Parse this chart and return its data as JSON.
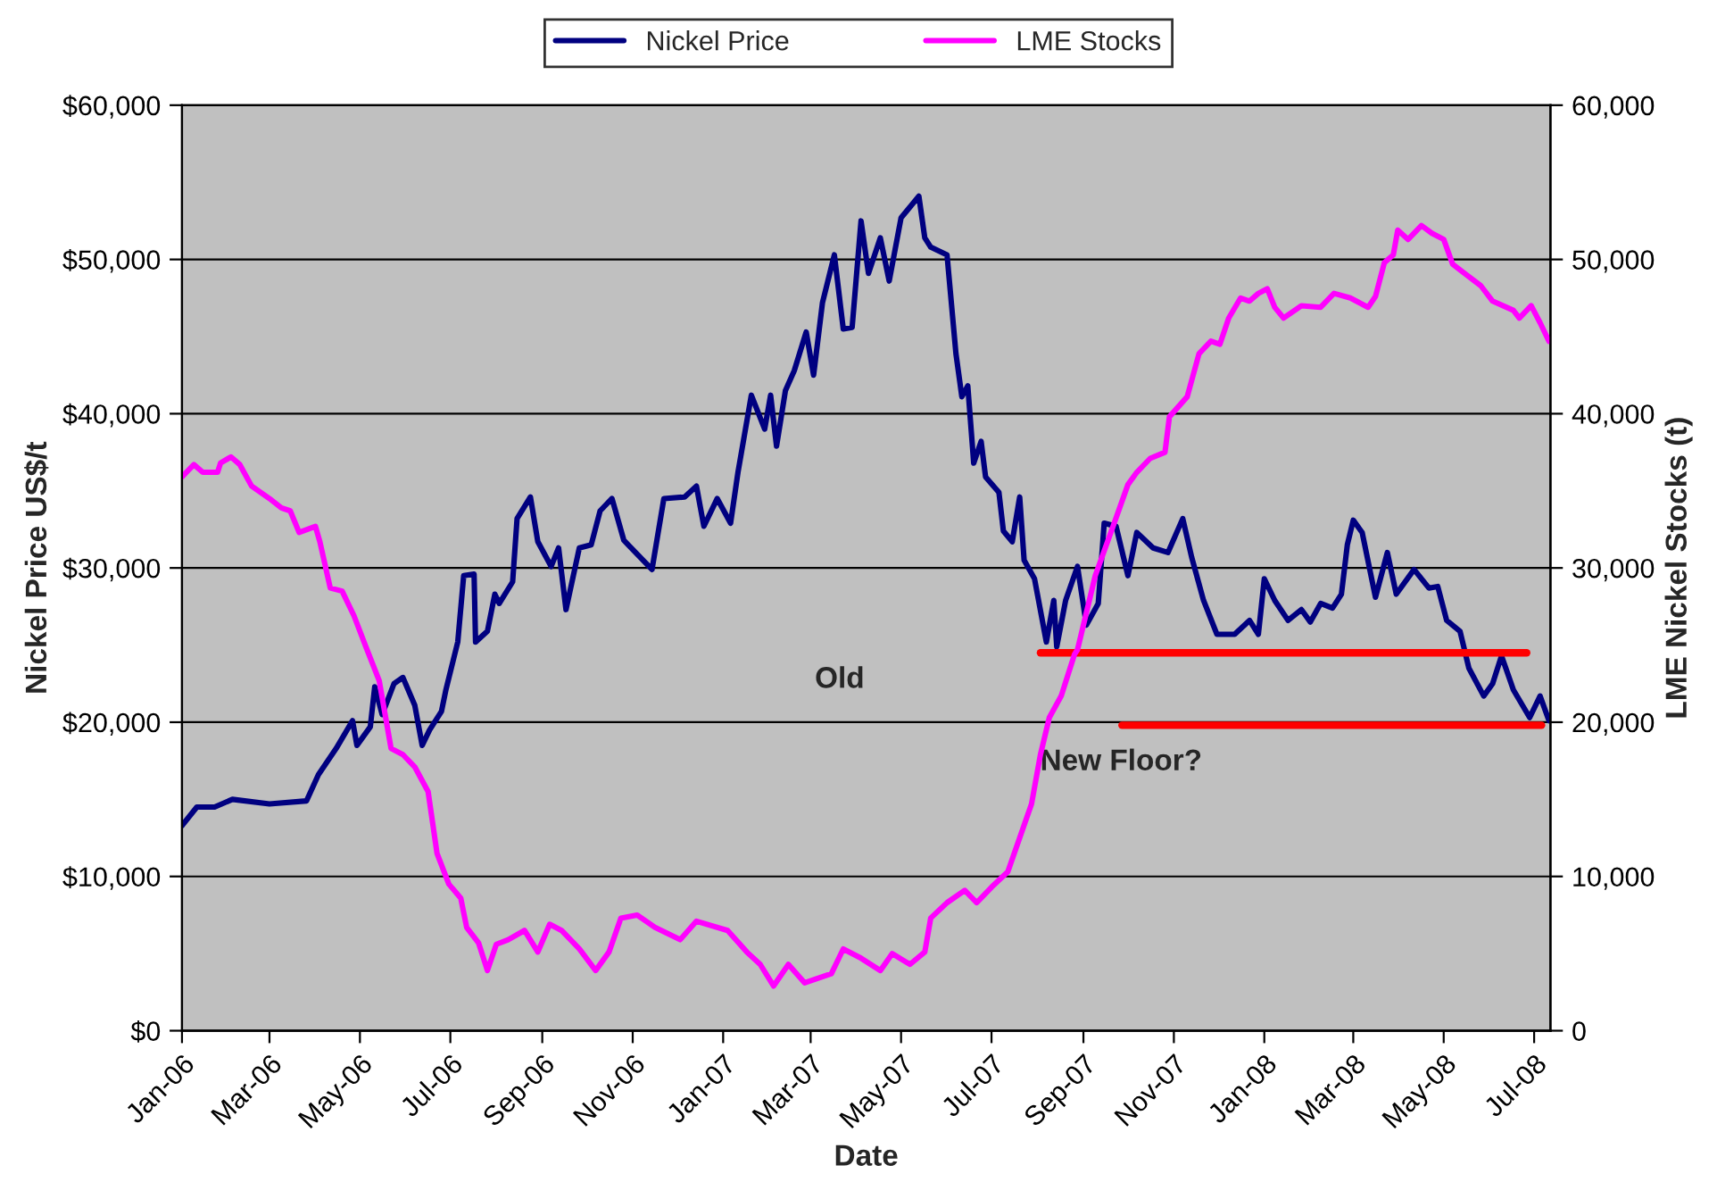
{
  "chart_data": {
    "type": "line",
    "xlabel": "Date",
    "ylabel": "Nickel Price US$/t",
    "y2label": "LME Nickel Stocks (t)",
    "xlim": [
      "2006-01-01",
      "2008-07-12"
    ],
    "xticks": [
      {
        "value": "2006-01-01",
        "label": "Jan-06"
      },
      {
        "value": "2006-03-01",
        "label": "Mar-06"
      },
      {
        "value": "2006-05-01",
        "label": "May-06"
      },
      {
        "value": "2006-07-01",
        "label": "Jul-06"
      },
      {
        "value": "2006-09-01",
        "label": "Sep-06"
      },
      {
        "value": "2006-11-01",
        "label": "Nov-06"
      },
      {
        "value": "2007-01-01",
        "label": "Jan-07"
      },
      {
        "value": "2007-03-01",
        "label": "Mar-07"
      },
      {
        "value": "2007-05-01",
        "label": "May-07"
      },
      {
        "value": "2007-07-01",
        "label": "Jul-07"
      },
      {
        "value": "2007-09-01",
        "label": "Sep-07"
      },
      {
        "value": "2007-11-01",
        "label": "Nov-07"
      },
      {
        "value": "2008-01-01",
        "label": "Jan-08"
      },
      {
        "value": "2008-03-01",
        "label": "Mar-08"
      },
      {
        "value": "2008-05-01",
        "label": "May-08"
      },
      {
        "value": "2008-07-01",
        "label": "Jul-08"
      }
    ],
    "ylim": [
      0,
      60000
    ],
    "yticks": [
      {
        "value": 0,
        "label": "$0"
      },
      {
        "value": 10000,
        "label": "$10,000"
      },
      {
        "value": 20000,
        "label": "$20,000"
      },
      {
        "value": 30000,
        "label": "$30,000"
      },
      {
        "value": 40000,
        "label": "$40,000"
      },
      {
        "value": 50000,
        "label": "$50,000"
      },
      {
        "value": 60000,
        "label": "$60,000"
      }
    ],
    "y2lim": [
      0,
      60000
    ],
    "y2ticks": [
      {
        "value": 0,
        "label": "0"
      },
      {
        "value": 10000,
        "label": "10,000"
      },
      {
        "value": 20000,
        "label": "20,000"
      },
      {
        "value": 30000,
        "label": "30,000"
      },
      {
        "value": 40000,
        "label": "40,000"
      },
      {
        "value": 50000,
        "label": "50,000"
      },
      {
        "value": 60000,
        "label": "60,000"
      }
    ],
    "grid": "y",
    "legend": "top",
    "marker": "none",
    "line_style": "solid",
    "series": [
      {
        "name": "Nickel Price",
        "color": "#000080",
        "axis": "y",
        "x": [
          "2006-01-01",
          "2006-01-11",
          "2006-01-23",
          "2006-02-04",
          "2006-03-01",
          "2006-03-26",
          "2006-04-03",
          "2006-04-15",
          "2006-04-26",
          "2006-04-29",
          "2006-05-08",
          "2006-05-11",
          "2006-05-16",
          "2006-05-24",
          "2006-05-30",
          "2006-06-07",
          "2006-06-12",
          "2006-06-17",
          "2006-06-25",
          "2006-06-28",
          "2006-07-06",
          "2006-07-10",
          "2006-07-17",
          "2006-07-18",
          "2006-07-26",
          "2006-07-31",
          "2006-08-03",
          "2006-08-12",
          "2006-08-15",
          "2006-08-24",
          "2006-08-29",
          "2006-09-07",
          "2006-09-12",
          "2006-09-17",
          "2006-09-26",
          "2006-10-04",
          "2006-10-10",
          "2006-10-18",
          "2006-10-26",
          "2006-10-29",
          "2006-11-14",
          "2006-11-22",
          "2006-12-06",
          "2006-12-14",
          "2006-12-19",
          "2006-12-28",
          "2007-01-06",
          "2007-01-11",
          "2007-01-20",
          "2007-01-29",
          "2007-02-02",
          "2007-02-06",
          "2007-02-12",
          "2007-02-18",
          "2007-02-26",
          "2007-03-03",
          "2007-03-09",
          "2007-03-17",
          "2007-03-23",
          "2007-03-29",
          "2007-04-04",
          "2007-04-09",
          "2007-04-17",
          "2007-04-23",
          "2007-05-01",
          "2007-05-13",
          "2007-05-17",
          "2007-05-21",
          "2007-06-01",
          "2007-06-07",
          "2007-06-11",
          "2007-06-15",
          "2007-06-19",
          "2007-06-24",
          "2007-06-27",
          "2007-07-06",
          "2007-07-09",
          "2007-07-15",
          "2007-07-20",
          "2007-07-23",
          "2007-07-30",
          "2007-08-07",
          "2007-08-12",
          "2007-08-14",
          "2007-08-20",
          "2007-08-28",
          "2007-09-03",
          "2007-09-11",
          "2007-09-15",
          "2007-09-23",
          "2007-10-01",
          "2007-10-07",
          "2007-10-18",
          "2007-10-28",
          "2007-11-07",
          "2007-11-13",
          "2007-11-21",
          "2007-11-30",
          "2007-12-12",
          "2007-12-22",
          "2007-12-28",
          "2008-01-01",
          "2008-01-08",
          "2008-01-17",
          "2008-01-26",
          "2008-02-01",
          "2008-02-08",
          "2008-02-16",
          "2008-02-22",
          "2008-02-26",
          "2008-03-01",
          "2008-03-07",
          "2008-03-16",
          "2008-03-24",
          "2008-03-30",
          "2008-04-11",
          "2008-04-21",
          "2008-04-27",
          "2008-05-03",
          "2008-05-12",
          "2008-05-18",
          "2008-05-28",
          "2008-06-03",
          "2008-06-09",
          "2008-06-17",
          "2008-06-28",
          "2008-07-05",
          "2008-07-11"
        ],
        "values": [
          13300,
          14500,
          14500,
          15000,
          14700,
          14900,
          16600,
          18300,
          20100,
          18500,
          19700,
          22300,
          20500,
          22500,
          22900,
          21100,
          18500,
          19500,
          20700,
          22100,
          25200,
          29500,
          29600,
          25200,
          25900,
          28300,
          27700,
          29100,
          33200,
          34600,
          31700,
          30100,
          31300,
          27300,
          31300,
          31500,
          33700,
          34500,
          31800,
          31500,
          29900,
          34500,
          34600,
          35300,
          32700,
          34500,
          32900,
          36200,
          41200,
          39000,
          41200,
          37900,
          41500,
          42800,
          45300,
          42500,
          47200,
          50300,
          45500,
          45600,
          52500,
          49100,
          51400,
          48600,
          52700,
          54100,
          51400,
          50800,
          50300,
          43900,
          41100,
          41800,
          36800,
          38200,
          35900,
          34900,
          32400,
          31700,
          34600,
          30500,
          29300,
          25200,
          27900,
          24900,
          27900,
          30100,
          26300,
          27700,
          32900,
          32700,
          29500,
          32300,
          31300,
          31000,
          33200,
          30700,
          27900,
          25700,
          25700,
          26600,
          25700,
          29300,
          27900,
          26600,
          27300,
          26500,
          27700,
          27400,
          28300,
          31500,
          33100,
          32300,
          28100,
          31000,
          28300,
          29900,
          28700,
          28800,
          26600,
          25900,
          23500,
          21700,
          22500,
          24300,
          22100,
          20300,
          21700,
          20100
        ]
      },
      {
        "name": "LME Stocks",
        "color": "#ff00ff",
        "axis": "y2",
        "x": [
          "2006-01-01",
          "2006-01-09",
          "2006-01-15",
          "2006-01-25",
          "2006-01-27",
          "2006-02-03",
          "2006-02-09",
          "2006-02-17",
          "2006-03-01",
          "2006-03-09",
          "2006-03-15",
          "2006-03-21",
          "2006-04-01",
          "2006-04-04",
          "2006-04-11",
          "2006-04-19",
          "2006-04-27",
          "2006-05-05",
          "2006-05-14",
          "2006-05-22",
          "2006-05-30",
          "2006-06-07",
          "2006-06-16",
          "2006-06-22",
          "2006-06-30",
          "2006-07-08",
          "2006-07-12",
          "2006-07-20",
          "2006-07-26",
          "2006-08-01",
          "2006-08-09",
          "2006-08-20",
          "2006-08-29",
          "2006-09-06",
          "2006-09-14",
          "2006-09-26",
          "2006-10-07",
          "2006-10-16",
          "2006-10-24",
          "2006-11-04",
          "2006-11-16",
          "2006-12-03",
          "2006-12-14",
          "2007-01-04",
          "2007-01-17",
          "2007-01-26",
          "2007-02-04",
          "2007-02-14",
          "2007-02-25",
          "2007-03-15",
          "2007-03-23",
          "2007-04-04",
          "2007-04-17",
          "2007-04-25",
          "2007-05-07",
          "2007-05-17",
          "2007-05-21",
          "2007-06-01",
          "2007-06-13",
          "2007-06-21",
          "2007-07-01",
          "2007-07-12",
          "2007-07-20",
          "2007-07-28",
          "2007-08-03",
          "2007-08-09",
          "2007-08-17",
          "2007-08-26",
          "2007-08-28",
          "2007-09-09",
          "2007-09-21",
          "2007-10-01",
          "2007-10-07",
          "2007-10-16",
          "2007-10-26",
          "2007-10-29",
          "2007-11-10",
          "2007-11-18",
          "2007-11-26",
          "2007-12-02",
          "2007-12-08",
          "2007-12-16",
          "2007-12-22",
          "2007-12-28",
          "2008-01-03",
          "2008-01-08",
          "2008-01-14",
          "2008-01-26",
          "2008-02-08",
          "2008-02-17",
          "2008-02-28",
          "2008-03-11",
          "2008-03-16",
          "2008-03-22",
          "2008-03-28",
          "2008-03-31",
          "2008-04-07",
          "2008-04-16",
          "2008-04-23",
          "2008-05-01",
          "2008-05-07",
          "2008-05-15",
          "2008-05-26",
          "2008-06-03",
          "2008-06-17",
          "2008-06-21",
          "2008-06-29",
          "2008-07-05",
          "2008-07-11"
        ],
        "values": [
          35900,
          36700,
          36200,
          36200,
          36800,
          37200,
          36700,
          35300,
          34500,
          33900,
          33700,
          32300,
          32700,
          31700,
          28700,
          28500,
          26900,
          24900,
          22700,
          18300,
          17900,
          17100,
          15500,
          11500,
          9500,
          8600,
          6700,
          5700,
          3900,
          5600,
          5900,
          6500,
          5100,
          6900,
          6500,
          5300,
          3900,
          5100,
          7300,
          7500,
          6700,
          5900,
          7100,
          6500,
          5100,
          4300,
          2900,
          4300,
          3100,
          3700,
          5300,
          4700,
          3900,
          5000,
          4300,
          5100,
          7300,
          8300,
          9100,
          8300,
          9300,
          10300,
          12500,
          14700,
          17900,
          20300,
          21700,
          24400,
          24700,
          29500,
          32700,
          35400,
          36200,
          37100,
          37500,
          39800,
          41100,
          43900,
          44700,
          44500,
          46200,
          47500,
          47300,
          47800,
          48100,
          46900,
          46200,
          47000,
          46900,
          47800,
          47500,
          46900,
          47600,
          49800,
          50300,
          51900,
          51300,
          52200,
          51700,
          51300,
          49700,
          49100,
          48300,
          47300,
          46700,
          46200,
          47000,
          45900,
          44700
        ]
      },
      {
        "type": "line",
        "color": "#ff0000",
        "axis": "y",
        "x": [
          "2007-08-03",
          "2008-06-26"
        ],
        "values": [
          24500,
          24500
        ]
      },
      {
        "type": "line",
        "color": "#ff0000",
        "axis": "y",
        "x": [
          "2007-09-27",
          "2008-07-06"
        ],
        "values": [
          19800,
          19800
        ]
      }
    ],
    "annotations": [
      "Old",
      "New Floor?"
    ]
  }
}
